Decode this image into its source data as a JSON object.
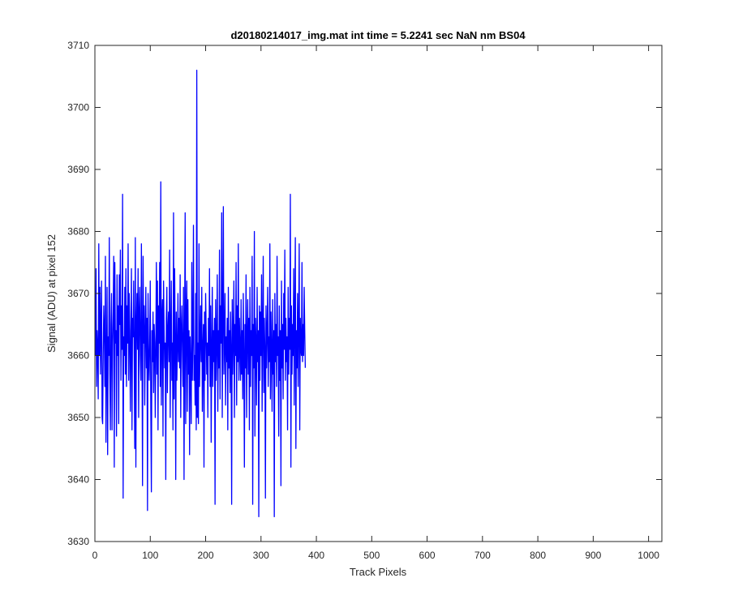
{
  "chart_data": {
    "type": "line",
    "title": "d20180214017_img.mat int time = 5.2241 sec  NaN nm BS04",
    "xlabel": "Track Pixels",
    "ylabel": "Signal (ADU) at pixel 152",
    "xlim": [
      0,
      1024
    ],
    "ylim": [
      3630,
      3710
    ],
    "xticks": [
      0,
      100,
      200,
      300,
      400,
      500,
      600,
      700,
      800,
      900,
      1000
    ],
    "yticks": [
      3630,
      3640,
      3650,
      3660,
      3670,
      3680,
      3690,
      3700,
      3710
    ],
    "xtick_labels": [
      "0",
      "100",
      "200",
      "300",
      "400",
      "500",
      "600",
      "700",
      "800",
      "900",
      "1000"
    ],
    "ytick_labels": [
      "3630",
      "3640",
      "3650",
      "3660",
      "3670",
      "3680",
      "3690",
      "3700",
      "3710"
    ],
    "grid": false,
    "series": [
      {
        "color": "#0000ff",
        "x_start": 1,
        "x_step": 1,
        "values": [
          3660,
          3674,
          3655,
          3664,
          3661,
          3653,
          3678,
          3660,
          3671,
          3657,
          3665,
          3672,
          3650,
          3649,
          3660,
          3668,
          3664,
          3655,
          3676,
          3646,
          3659,
          3671,
          3644,
          3663,
          3660,
          3679,
          3657,
          3648,
          3665,
          3670,
          3648,
          3662,
          3667,
          3676,
          3642,
          3675,
          3662,
          3664,
          3647,
          3673,
          3660,
          3668,
          3649,
          3673,
          3665,
          3677,
          3656,
          3668,
          3661,
          3686,
          3637,
          3663,
          3660,
          3671,
          3657,
          3674,
          3655,
          3668,
          3662,
          3678,
          3656,
          3670,
          3664,
          3651,
          3662,
          3674,
          3648,
          3666,
          3663,
          3672,
          3659,
          3645,
          3679,
          3642,
          3665,
          3670,
          3661,
          3674,
          3650,
          3667,
          3671,
          3660,
          3656,
          3678,
          3663,
          3639,
          3676,
          3662,
          3668,
          3652,
          3664,
          3671,
          3658,
          3666,
          3635,
          3670,
          3660,
          3656,
          3662,
          3672,
          3651,
          3638,
          3664,
          3659,
          3667,
          3654,
          3665,
          3662,
          3650,
          3661,
          3675,
          3657,
          3672,
          3648,
          3668,
          3662,
          3675,
          3655,
          3688,
          3652,
          3666,
          3669,
          3647,
          3672,
          3664,
          3658,
          3662,
          3640,
          3666,
          3671,
          3654,
          3664,
          3667,
          3659,
          3677,
          3650,
          3664,
          3672,
          3656,
          3662,
          3648,
          3683,
          3653,
          3674,
          3663,
          3640,
          3667,
          3656,
          3661,
          3670,
          3659,
          3666,
          3658,
          3673,
          3650,
          3664,
          3668,
          3661,
          3655,
          3671,
          3640,
          3664,
          3683,
          3649,
          3666,
          3672,
          3651,
          3669,
          3657,
          3664,
          3644,
          3663,
          3658,
          3649,
          3675,
          3656,
          3663,
          3681,
          3656,
          3660,
          3652,
          3670,
          3648,
          3706,
          3650,
          3662,
          3649,
          3678,
          3655,
          3662,
          3668,
          3659,
          3671,
          3651,
          3661,
          3665,
          3642,
          3667,
          3656,
          3670,
          3664,
          3657,
          3662,
          3650,
          3666,
          3660,
          3674,
          3655,
          3668,
          3646,
          3661,
          3671,
          3655,
          3664,
          3659,
          3666,
          3636,
          3669,
          3656,
          3662,
          3673,
          3651,
          3664,
          3658,
          3677,
          3653,
          3668,
          3662,
          3683,
          3650,
          3666,
          3684,
          3657,
          3662,
          3670,
          3652,
          3663,
          3659,
          3666,
          3648,
          3671,
          3658,
          3664,
          3654,
          3667,
          3661,
          3636,
          3669,
          3657,
          3663,
          3672,
          3650,
          3665,
          3660,
          3675,
          3652,
          3668,
          3659,
          3678,
          3656,
          3666,
          3661,
          3656,
          3669,
          3657,
          3664,
          3653,
          3670,
          3660,
          3642,
          3665,
          3658,
          3673,
          3650,
          3663,
          3669,
          3657,
          3666,
          3648,
          3671,
          3655,
          3664,
          3660,
          3676,
          3636,
          3665,
          3658,
          3680,
          3647,
          3666,
          3662,
          3652,
          3671,
          3659,
          3664,
          3634,
          3668,
          3656,
          3667,
          3660,
          3673,
          3651,
          3664,
          3676,
          3654,
          3666,
          3661,
          3637,
          3668,
          3658,
          3664,
          3671,
          3655,
          3663,
          3659,
          3678,
          3653,
          3667,
          3661,
          3651,
          3669,
          3657,
          3664,
          3634,
          3670,
          3659,
          3665,
          3655,
          3676,
          3660,
          3663,
          3647,
          3668,
          3656,
          3664,
          3639,
          3672,
          3658,
          3665,
          3653,
          3670,
          3661,
          3677,
          3656,
          3666,
          3659,
          3663,
          3648,
          3671,
          3657,
          3666,
          3661,
          3686,
          3642,
          3668,
          3657,
          3665,
          3660,
          3674,
          3652,
          3667,
          3679,
          3645,
          3664,
          3658,
          3670,
          3655,
          3665,
          3678,
          3648,
          3666,
          3661,
          3660,
          3675,
          3659,
          3665,
          3660,
          3671,
          3664,
          3658
        ]
      }
    ]
  }
}
